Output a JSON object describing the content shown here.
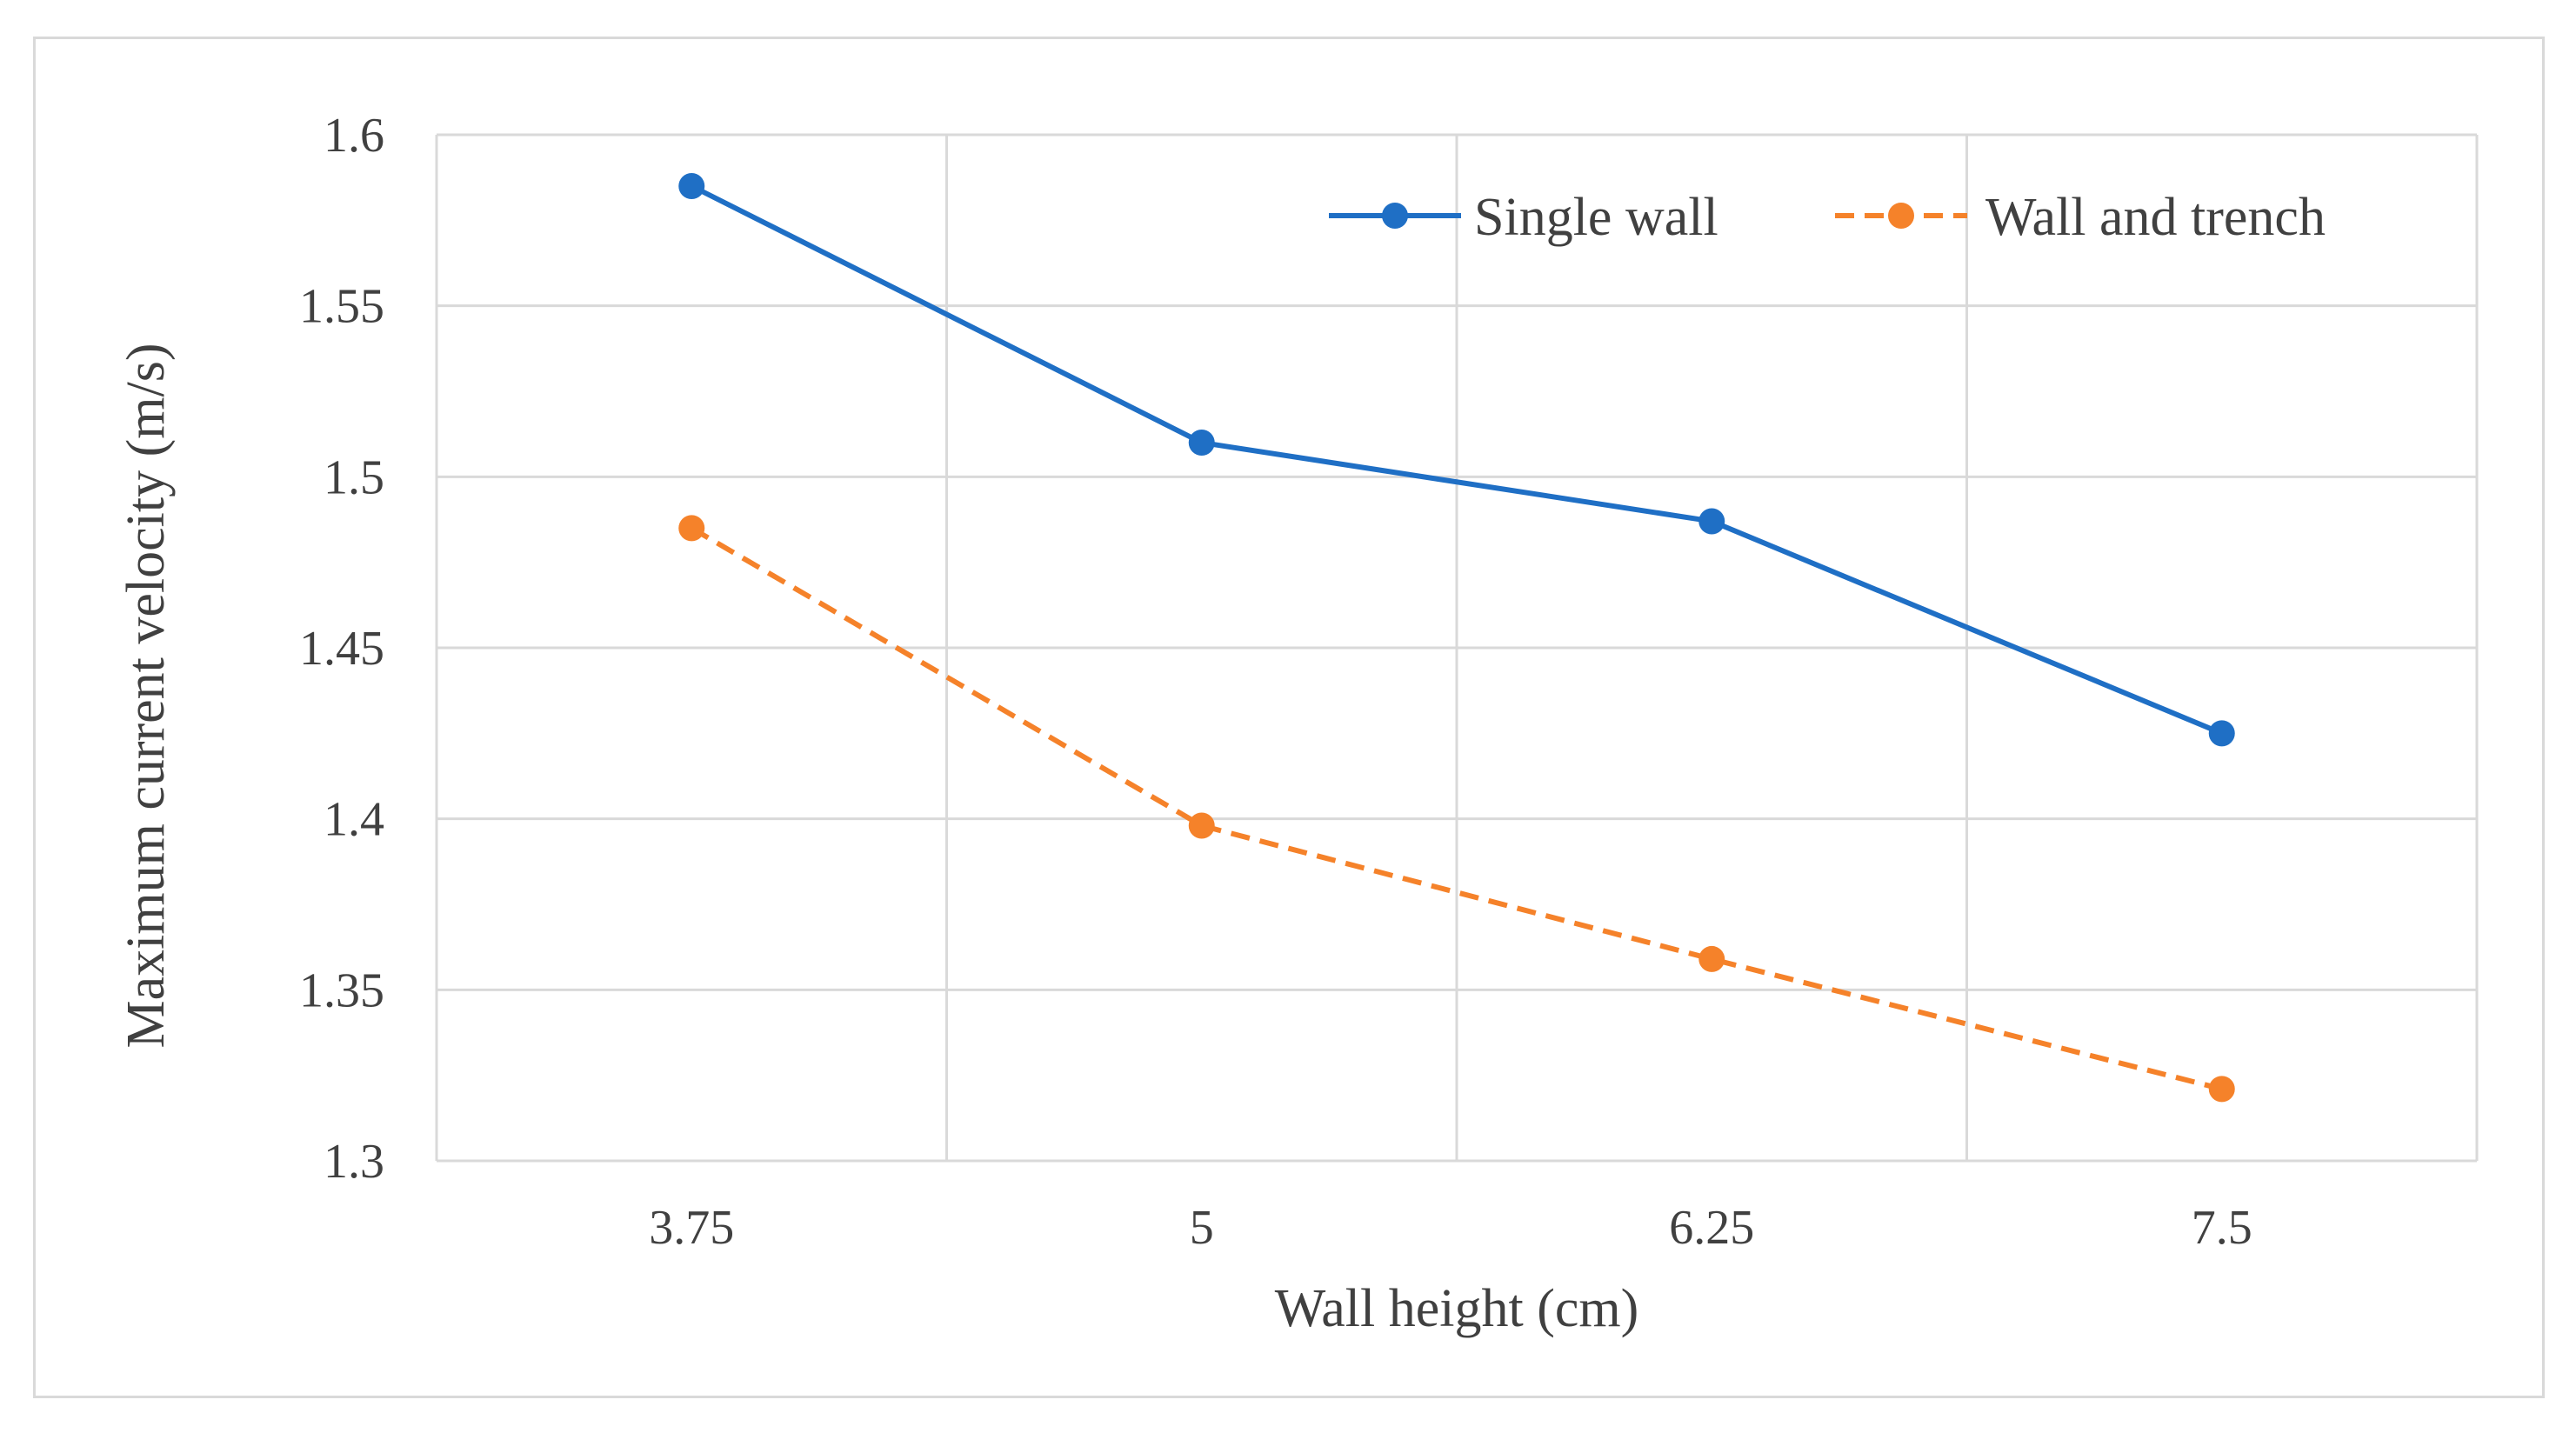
{
  "chart_data": {
    "type": "line",
    "title": "",
    "xlabel": "Wall height (cm)",
    "ylabel": "Maximum current velocity  (m/s)",
    "categories": [
      "3.75",
      "5",
      "6.25",
      "7.5"
    ],
    "ylim": [
      1.3,
      1.6
    ],
    "yticks": [
      "1.3",
      "1.35",
      "1.4",
      "1.45",
      "1.5",
      "1.55",
      "1.6"
    ],
    "grid": true,
    "legend_position": "top-right",
    "series": [
      {
        "name": "Single wall",
        "values": [
          1.585,
          1.51,
          1.487,
          1.425
        ],
        "color": "#1f6fc5",
        "dash": "solid"
      },
      {
        "name": "Wall and trench",
        "values": [
          1.485,
          1.398,
          1.359,
          1.321
        ],
        "color": "#f5822a",
        "dash": "dashed"
      }
    ]
  }
}
